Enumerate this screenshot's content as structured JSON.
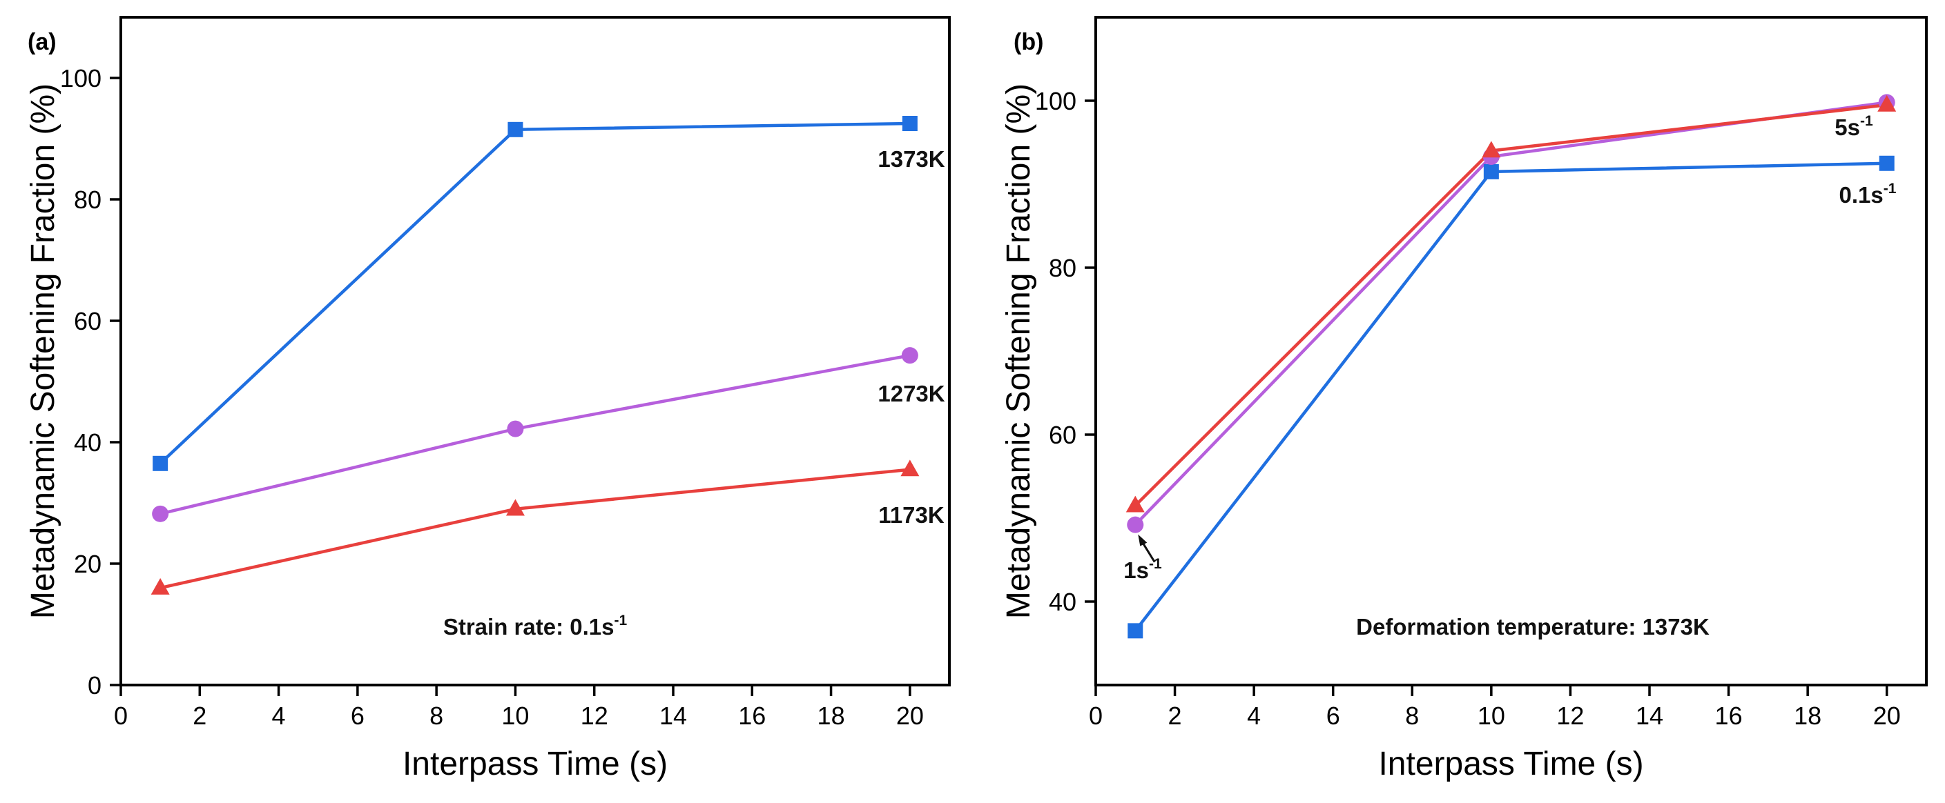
{
  "chart_data": [
    {
      "type": "line",
      "panel_label": "(a)",
      "xlabel": "Interpass Time (s)",
      "ylabel": "Metadynamic Softening Fraction (%)",
      "xlim": [
        0,
        21
      ],
      "ylim": [
        0,
        110
      ],
      "xticks": [
        0,
        2,
        4,
        6,
        8,
        10,
        12,
        14,
        16,
        18,
        20
      ],
      "yticks": [
        0,
        20,
        40,
        60,
        80,
        100
      ],
      "x": [
        1,
        10,
        20
      ],
      "series": [
        {
          "name": "1373K",
          "values": [
            36.5,
            91.5,
            92.5
          ],
          "color": "#1f6fe0",
          "marker": "square"
        },
        {
          "name": "1273K",
          "values": [
            28.2,
            42.2,
            54.3
          ],
          "color": "#b65fdc",
          "marker": "circle"
        },
        {
          "name": "1173K",
          "values": [
            16.0,
            29.0,
            35.5
          ],
          "color": "#e8403d",
          "marker": "triangle"
        }
      ],
      "annotations": [
        {
          "text": "1373K",
          "x": 20,
          "y": 86
        },
        {
          "text": "1273K",
          "x": 20,
          "y": 47
        },
        {
          "text": "1173K",
          "x": 20,
          "y": 27
        },
        {
          "text": "Strain rate: 0.1s",
          "sup": "-1",
          "x": 11,
          "y": 9
        }
      ]
    },
    {
      "type": "line",
      "panel_label": "(b)",
      "xlabel": "Interpass Time (s)",
      "ylabel": "Metadynamic Softening Fraction (%)",
      "xlim": [
        0,
        21
      ],
      "ylim": [
        30,
        110
      ],
      "xticks": [
        0,
        2,
        4,
        6,
        8,
        10,
        12,
        14,
        16,
        18,
        20
      ],
      "yticks": [
        40,
        60,
        80,
        100
      ],
      "x": [
        1,
        10,
        20
      ],
      "series": [
        {
          "name": "0.1s-1",
          "values": [
            36.5,
            91.5,
            92.5
          ],
          "color": "#1f6fe0",
          "marker": "square"
        },
        {
          "name": "1s-1",
          "values": [
            49.2,
            93.3,
            99.8
          ],
          "color": "#b65fdc",
          "marker": "circle"
        },
        {
          "name": "5s-1",
          "values": [
            51.5,
            94.0,
            99.5
          ],
          "color": "#e8403d",
          "marker": "triangle"
        }
      ],
      "annotations": [
        {
          "text": "5s",
          "sup": "-1",
          "x": 19.5,
          "y": 96
        },
        {
          "text": "0.1s",
          "sup": "-1",
          "x": 19.5,
          "y": 88.5
        },
        {
          "text": "1s",
          "sup": "-1",
          "x": 1.3,
          "y": 43
        },
        {
          "text": "Deformation temperature: 1373K",
          "x": 11,
          "y": 37
        }
      ]
    }
  ]
}
